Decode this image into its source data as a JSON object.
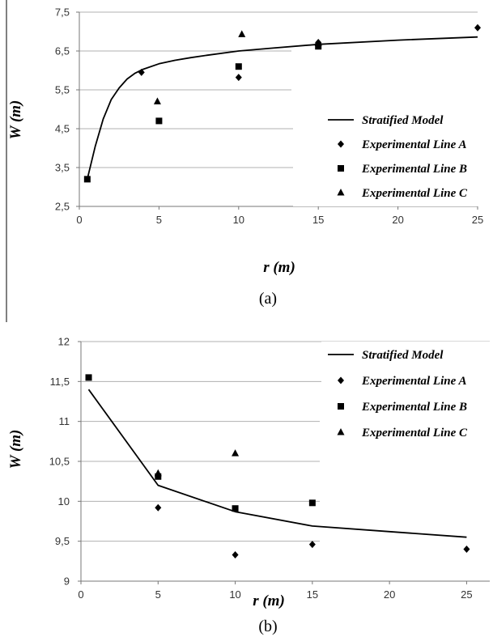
{
  "chart_data": [
    {
      "type": "scatter",
      "caption": "(a)",
      "xlabel": "r  (m)",
      "ylabel": "W  (m)",
      "xlim": [
        0,
        25
      ],
      "ylim": [
        2.5,
        7.5
      ],
      "xticks": [
        0,
        5,
        10,
        15,
        20,
        25
      ],
      "xtick_labels": [
        "0",
        "5",
        "10",
        "15",
        "20",
        "25"
      ],
      "yticks": [
        2.5,
        3.5,
        4.5,
        5.5,
        6.5,
        7.5
      ],
      "ytick_labels": [
        "2,5",
        "3,5",
        "4,5",
        "5,5",
        "6,5",
        "7,5"
      ],
      "grid": true,
      "legend_position": "bottom-right",
      "series": [
        {
          "name": "Stratified Model",
          "kind": "line",
          "color": "#000000",
          "x": [
            0.5,
            1,
            1.5,
            2,
            2.5,
            3,
            3.5,
            4,
            5,
            6,
            7,
            8,
            10,
            12,
            15,
            20,
            25
          ],
          "y": [
            3.2,
            4.05,
            4.75,
            5.25,
            5.55,
            5.78,
            5.93,
            6.03,
            6.17,
            6.26,
            6.33,
            6.39,
            6.5,
            6.57,
            6.67,
            6.78,
            6.86
          ]
        },
        {
          "name": "Experimental Line A",
          "kind": "marker",
          "marker": "diamond",
          "color": "#000000",
          "x": [
            3.9,
            10,
            15,
            25
          ],
          "y": [
            5.95,
            5.82,
            6.72,
            7.1
          ]
        },
        {
          "name": "Experimental Line B",
          "kind": "marker",
          "marker": "square",
          "color": "#000000",
          "x": [
            0.5,
            5,
            10,
            15
          ],
          "y": [
            3.2,
            4.7,
            6.1,
            6.62
          ]
        },
        {
          "name": "Experimental Line C",
          "kind": "marker",
          "marker": "triangle",
          "color": "#000000",
          "x": [
            4.9,
            10.2,
            15
          ],
          "y": [
            5.2,
            6.93,
            6.7
          ]
        }
      ]
    },
    {
      "type": "scatter",
      "caption": "(b)",
      "xlabel": "r  (m)",
      "ylabel": "W  (m)",
      "xlim": [
        0,
        26.5
      ],
      "ylim": [
        9,
        12
      ],
      "xticks": [
        0,
        5,
        10,
        15,
        20,
        25
      ],
      "xtick_labels": [
        "0",
        "5",
        "10",
        "15",
        "20",
        "25"
      ],
      "yticks": [
        9,
        9.5,
        10,
        10.5,
        11,
        11.5,
        12
      ],
      "ytick_labels": [
        "9",
        "9,5",
        "10",
        "10,5",
        "11",
        "11,5",
        "12"
      ],
      "grid": true,
      "legend_position": "top-right",
      "series": [
        {
          "name": "Stratified Model",
          "kind": "line",
          "color": "#000000",
          "x": [
            0.5,
            5,
            10,
            15,
            20,
            25
          ],
          "y": [
            11.4,
            10.2,
            9.87,
            9.69,
            9.62,
            9.55
          ]
        },
        {
          "name": "Experimental Line A",
          "kind": "marker",
          "marker": "diamond",
          "color": "#000000",
          "x": [
            5,
            10,
            15,
            25
          ],
          "y": [
            9.92,
            9.33,
            9.46,
            9.4
          ]
        },
        {
          "name": "Experimental Line B",
          "kind": "marker",
          "marker": "square",
          "color": "#000000",
          "x": [
            0.5,
            5,
            10,
            15
          ],
          "y": [
            11.55,
            10.31,
            9.91,
            9.98
          ]
        },
        {
          "name": "Experimental Line C",
          "kind": "marker",
          "marker": "triangle",
          "color": "#000000",
          "x": [
            5,
            10
          ],
          "y": [
            10.35,
            10.6
          ]
        }
      ]
    }
  ]
}
